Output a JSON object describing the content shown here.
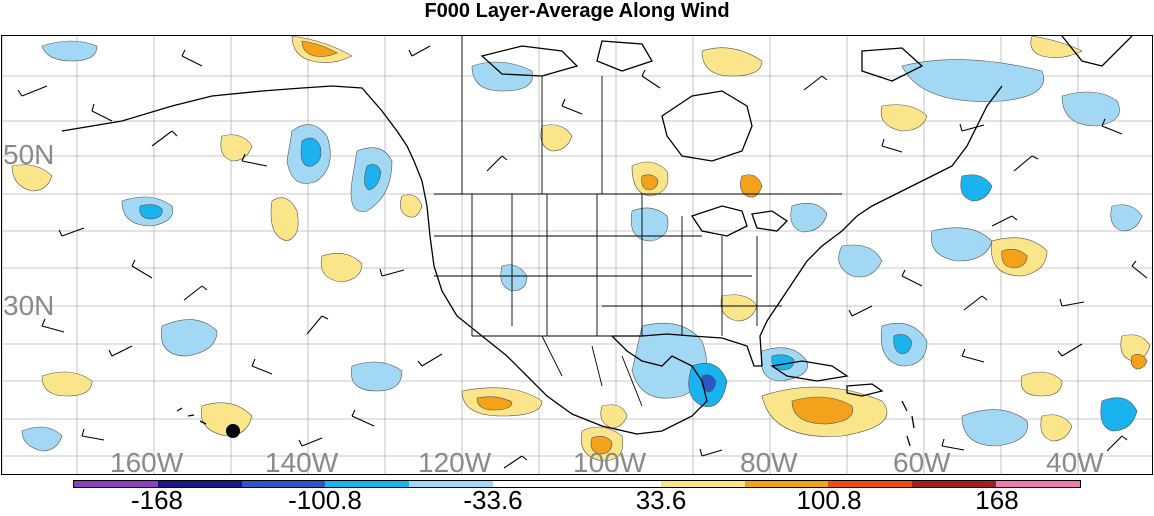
{
  "title": "F000 Layer-Average Along Wind",
  "lat_labels": [
    {
      "text": "50N"
    },
    {
      "text": "30N"
    }
  ],
  "lon_labels": [
    {
      "text": "160W"
    },
    {
      "text": "140W"
    },
    {
      "text": "120W"
    },
    {
      "text": "100W"
    },
    {
      "text": "80W"
    },
    {
      "text": "60W"
    },
    {
      "text": "40W"
    }
  ],
  "colorbar": {
    "colors": [
      "#8c3fbf",
      "#16178a",
      "#2c58c7",
      "#1ab2ef",
      "#a2d8f4",
      "#ffffff",
      "#ffffff",
      "#fbe58a",
      "#f5a21b",
      "#ec4d16",
      "#a21e20",
      "#f07ab0"
    ],
    "labels": [
      "-168",
      "-100.8",
      "-33.6",
      "33.6",
      "100.8",
      "168"
    ]
  },
  "fill_colors": {
    "light_blue": "#a2d8f4",
    "blue": "#1ab2ef",
    "dark_blue": "#2c58c7",
    "light_yellow": "#fbe58a",
    "orange": "#f5a21b"
  }
}
